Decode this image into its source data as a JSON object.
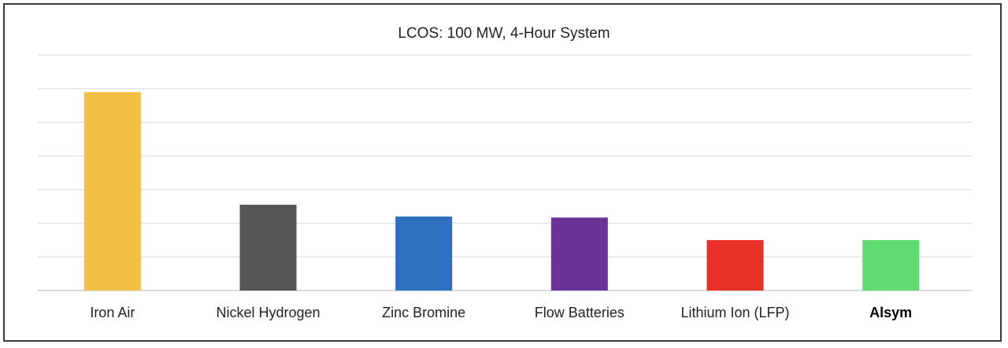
{
  "chart_data": {
    "type": "bar",
    "title": "LCOS: 100 MW, 4-Hour System",
    "categories": [
      "Iron Air",
      "Nickel Hydrogen",
      "Zinc Bromine",
      "Flow Batteries",
      "Lithium Ion (LFP)",
      "Alsym"
    ],
    "values": [
      5.9,
      2.55,
      2.2,
      2.17,
      1.5,
      1.5
    ],
    "colors": [
      "#F2C144",
      "#565656",
      "#2E6FC0",
      "#6B3298",
      "#E8302A",
      "#62DB72"
    ],
    "emphasized_category": "Alsym",
    "xlabel": "",
    "ylabel": "",
    "ylim": [
      0,
      7
    ],
    "yticks_shown": false,
    "grid": true,
    "legend": "none"
  }
}
